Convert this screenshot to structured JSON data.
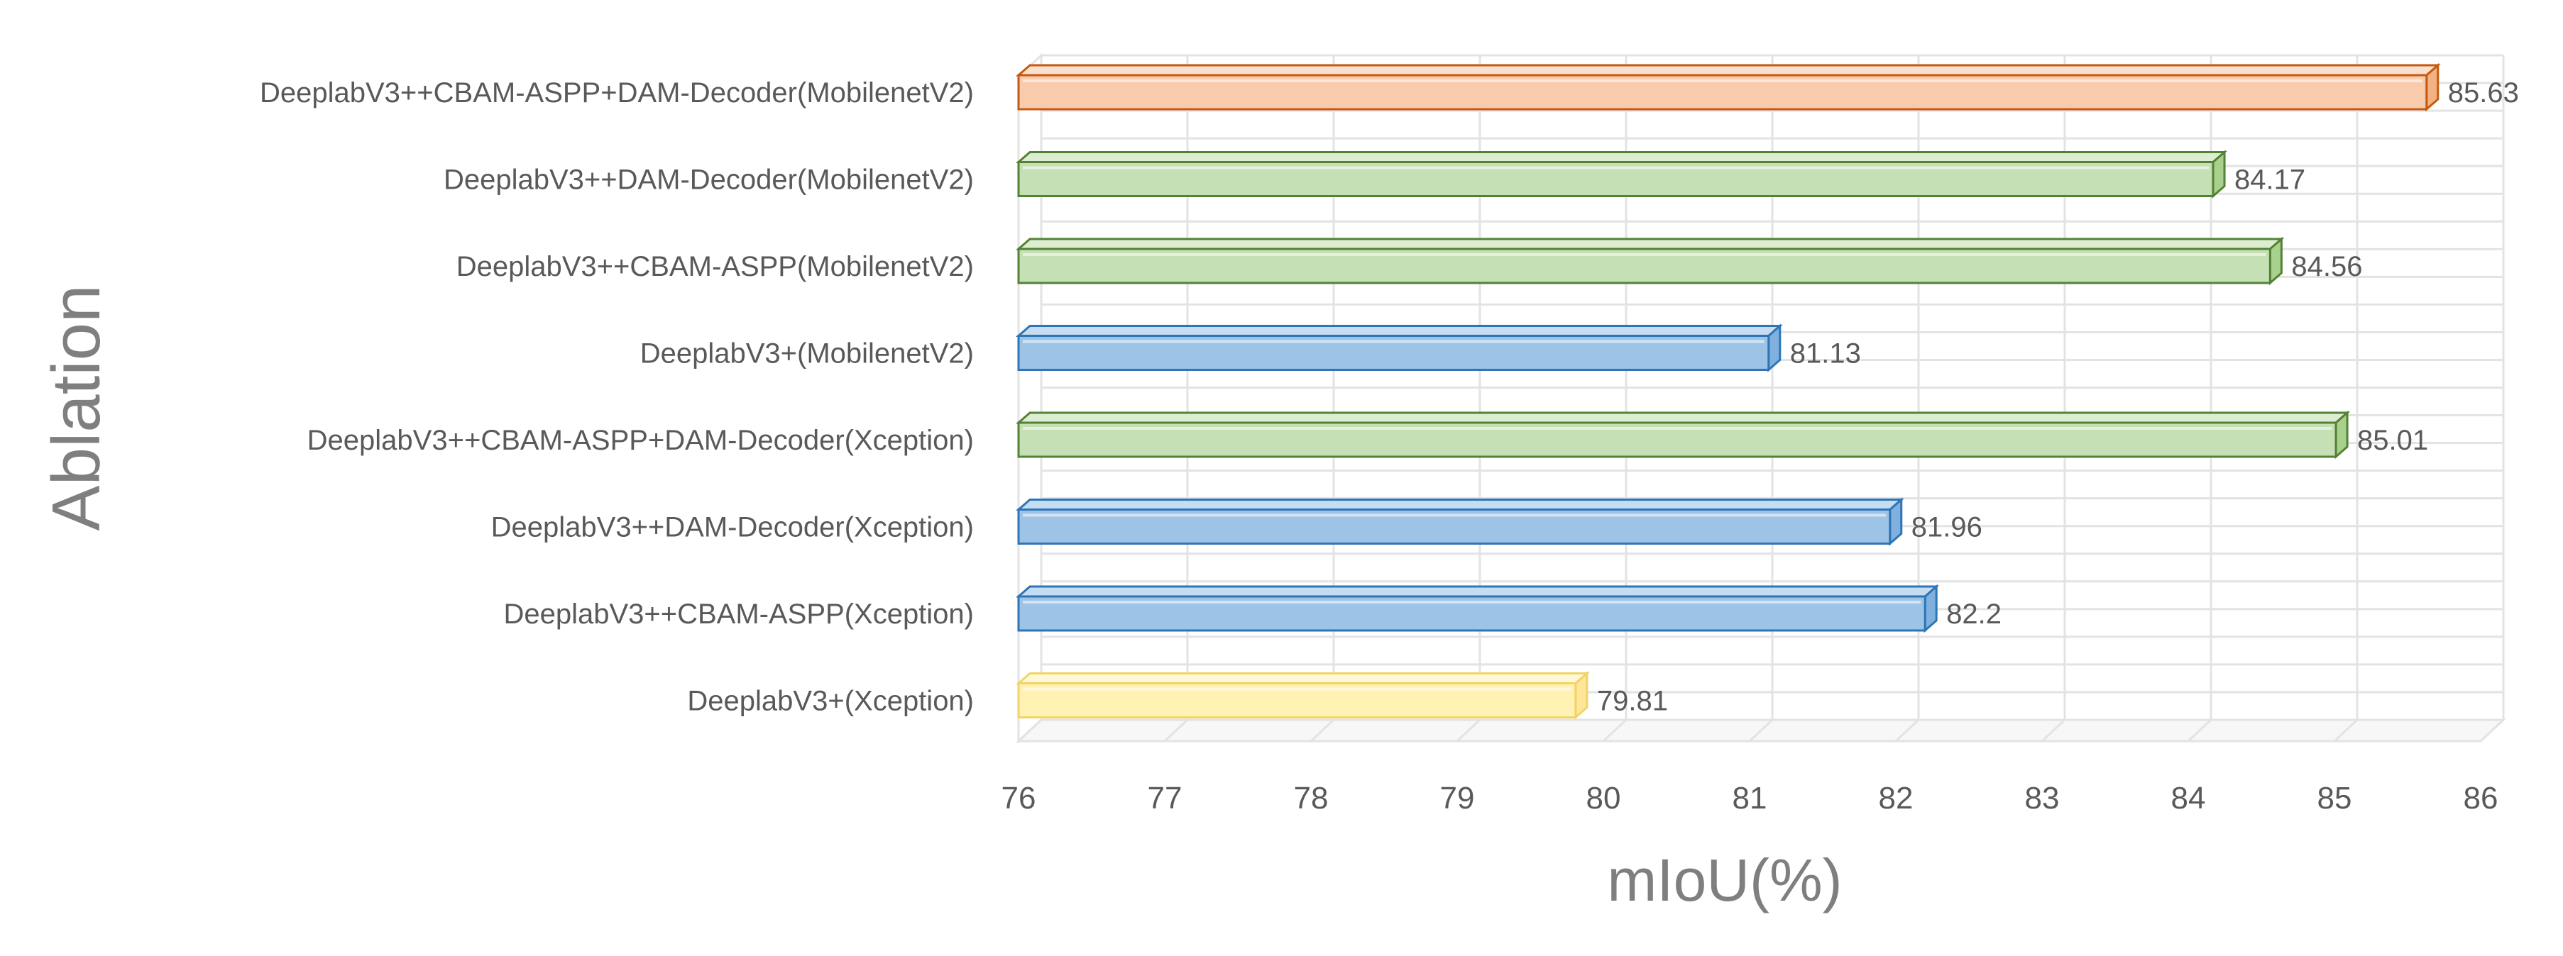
{
  "chart_data": {
    "type": "bar",
    "orientation": "horizontal",
    "style": "3d",
    "title": "",
    "xlabel": "mIoU(%)",
    "ylabel": "Ablation",
    "xlim": [
      76,
      86
    ],
    "x_ticks": [
      76,
      77,
      78,
      79,
      80,
      81,
      82,
      83,
      84,
      85,
      86
    ],
    "grid": true,
    "legend": "none",
    "categories": [
      "DeeplabV3++CBAM-ASPP+DAM-Decoder(MobilenetV2)",
      "DeeplabV3++DAM-Decoder(MobilenetV2)",
      "DeeplabV3++CBAM-ASPP(MobilenetV2)",
      "DeeplabV3+(MobilenetV2)",
      "DeeplabV3++CBAM-ASPP+DAM-Decoder(Xception)",
      "DeeplabV3++DAM-Decoder(Xception)",
      "DeeplabV3++CBAM-ASPP(Xception)",
      "DeeplabV3+(Xception)"
    ],
    "values": [
      85.63,
      84.17,
      84.56,
      81.13,
      85.01,
      81.96,
      82.2,
      79.81
    ],
    "data_labels": [
      "85.63",
      "84.17",
      "84.56",
      "81.13",
      "85.01",
      "81.96",
      "82.2",
      "79.81"
    ],
    "bar_colors": [
      "orange",
      "green",
      "green",
      "blue",
      "green",
      "blue",
      "blue",
      "yellow"
    ]
  },
  "colors": {
    "orange": {
      "fill": "#f8cbad",
      "stroke": "#c55a11",
      "top": "#fbe0cf",
      "side": "#f4b183"
    },
    "green": {
      "fill": "#c5e0b4",
      "stroke": "#548235",
      "top": "#dcedd1",
      "side": "#a9d18e"
    },
    "blue": {
      "fill": "#9dc3e6",
      "stroke": "#2e75b6",
      "top": "#c5ddf2",
      "side": "#7fb0de"
    },
    "yellow": {
      "fill": "#fff2b3",
      "stroke": "#f2d466",
      "top": "#fff8d6",
      "side": "#ffe699"
    },
    "grid": "#e3e3e3",
    "text": "#595959",
    "axis_title": "#7f7f7f"
  }
}
